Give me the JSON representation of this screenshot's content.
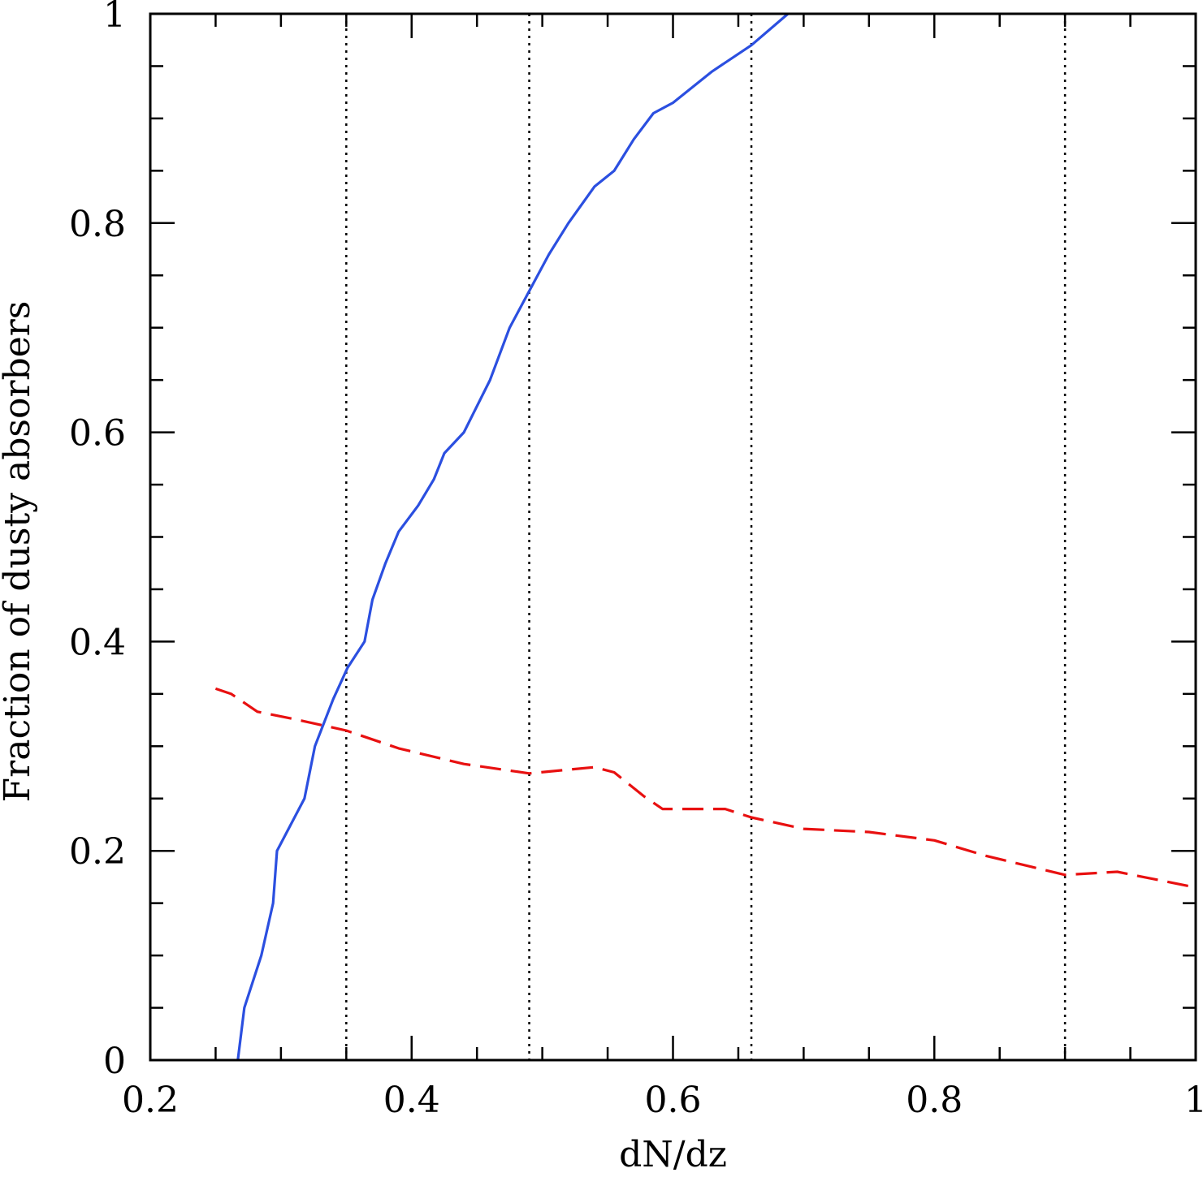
{
  "chart_data": {
    "type": "line",
    "xlabel": "dN/dz",
    "ylabel": "Fraction of dusty absorbers",
    "xlim": [
      0.2,
      1.0
    ],
    "ylim": [
      0,
      1.0
    ],
    "x_ticks": [
      {
        "value": 0.2,
        "label": "0.2"
      },
      {
        "value": 0.4,
        "label": "0.4"
      },
      {
        "value": 0.6,
        "label": "0.6"
      },
      {
        "value": 0.8,
        "label": "0.8"
      },
      {
        "value": 1.0,
        "label": "1"
      }
    ],
    "y_ticks": [
      {
        "value": 0,
        "label": "0"
      },
      {
        "value": 0.2,
        "label": "0.2"
      },
      {
        "value": 0.4,
        "label": "0.4"
      },
      {
        "value": 0.6,
        "label": "0.6"
      },
      {
        "value": 0.8,
        "label": "0.8"
      },
      {
        "value": 1.0,
        "label": "1"
      }
    ],
    "x_minor_step": 0.05,
    "y_minor_step": 0.05,
    "grid": false,
    "vertical_reference_lines": [
      0.35,
      0.49,
      0.66,
      0.9
    ],
    "series": [
      {
        "style": "solid",
        "color": "#2b4fe0",
        "points": [
          [
            0.267,
            0.0
          ],
          [
            0.272,
            0.05
          ],
          [
            0.285,
            0.1
          ],
          [
            0.294,
            0.15
          ],
          [
            0.297,
            0.2
          ],
          [
            0.318,
            0.25
          ],
          [
            0.326,
            0.3
          ],
          [
            0.34,
            0.345
          ],
          [
            0.351,
            0.375
          ],
          [
            0.364,
            0.4
          ],
          [
            0.37,
            0.44
          ],
          [
            0.38,
            0.475
          ],
          [
            0.39,
            0.505
          ],
          [
            0.405,
            0.53
          ],
          [
            0.417,
            0.555
          ],
          [
            0.425,
            0.58
          ],
          [
            0.44,
            0.6
          ],
          [
            0.46,
            0.65
          ],
          [
            0.475,
            0.7
          ],
          [
            0.49,
            0.735
          ],
          [
            0.505,
            0.77
          ],
          [
            0.52,
            0.8
          ],
          [
            0.54,
            0.835
          ],
          [
            0.555,
            0.85
          ],
          [
            0.57,
            0.88
          ],
          [
            0.585,
            0.905
          ],
          [
            0.6,
            0.915
          ],
          [
            0.63,
            0.945
          ],
          [
            0.66,
            0.97
          ],
          [
            0.688,
            1.0
          ]
        ]
      },
      {
        "style": "dashed",
        "color": "#e81010",
        "points": [
          [
            0.25,
            0.355
          ],
          [
            0.262,
            0.35
          ],
          [
            0.282,
            0.333
          ],
          [
            0.31,
            0.326
          ],
          [
            0.35,
            0.315
          ],
          [
            0.39,
            0.298
          ],
          [
            0.44,
            0.283
          ],
          [
            0.49,
            0.274
          ],
          [
            0.54,
            0.28
          ],
          [
            0.555,
            0.275
          ],
          [
            0.578,
            0.252
          ],
          [
            0.592,
            0.24
          ],
          [
            0.64,
            0.24
          ],
          [
            0.66,
            0.232
          ],
          [
            0.7,
            0.221
          ],
          [
            0.75,
            0.218
          ],
          [
            0.8,
            0.21
          ],
          [
            0.84,
            0.195
          ],
          [
            0.9,
            0.177
          ],
          [
            0.94,
            0.18
          ],
          [
            1.0,
            0.165
          ]
        ]
      }
    ]
  }
}
